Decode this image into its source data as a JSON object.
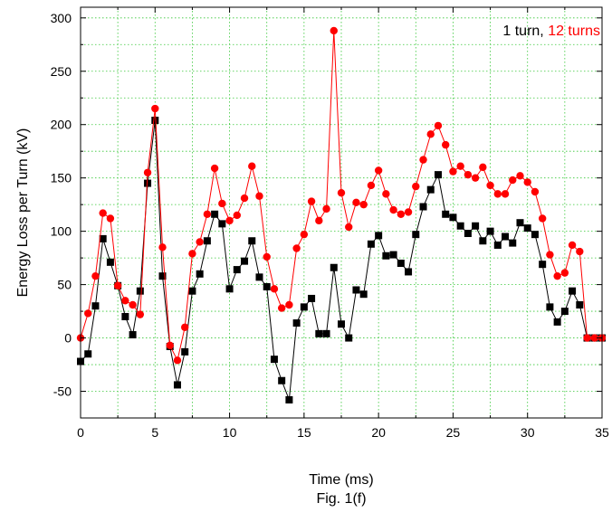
{
  "caption": "Fig. 1(f)",
  "chart_data": {
    "type": "line",
    "title": "",
    "xlabel": "Time (ms)",
    "ylabel": "Energy Loss per Turn (kV)",
    "xlim": [
      0,
      35
    ],
    "ylim": [
      -75,
      310
    ],
    "xticks": [
      0,
      5,
      10,
      15,
      20,
      25,
      30,
      35
    ],
    "yticks": [
      -50,
      0,
      50,
      100,
      150,
      200,
      250,
      300
    ],
    "grid": true,
    "legend": {
      "placement": "top-right",
      "separator": ", ",
      "entries": [
        {
          "label": "1 turn",
          "color": "#000000"
        },
        {
          "label": "12 turns",
          "color": "#ff0000"
        }
      ]
    },
    "series": [
      {
        "name": "1 turn",
        "color": "#000000",
        "marker": "square",
        "points": [
          [
            0.0,
            -22
          ],
          [
            0.5,
            -15
          ],
          [
            1.0,
            30
          ],
          [
            1.5,
            93
          ],
          [
            2.0,
            71
          ],
          [
            2.5,
            49
          ],
          [
            3.0,
            20
          ],
          [
            3.5,
            3
          ],
          [
            4.0,
            44
          ],
          [
            4.5,
            145
          ],
          [
            5.0,
            204
          ],
          [
            5.5,
            58
          ],
          [
            6.0,
            -8
          ],
          [
            6.5,
            -44
          ],
          [
            7.0,
            -13
          ],
          [
            7.5,
            44
          ],
          [
            8.0,
            60
          ],
          [
            8.5,
            91
          ],
          [
            9.0,
            116
          ],
          [
            9.5,
            107
          ],
          [
            10.0,
            46
          ],
          [
            10.5,
            64
          ],
          [
            11.0,
            72
          ],
          [
            11.5,
            91
          ],
          [
            12.0,
            57
          ],
          [
            12.5,
            48
          ],
          [
            13.0,
            -20
          ],
          [
            13.5,
            -40
          ],
          [
            14.0,
            -58
          ],
          [
            14.5,
            14
          ],
          [
            15.0,
            29
          ],
          [
            15.5,
            37
          ],
          [
            16.0,
            4
          ],
          [
            16.5,
            4
          ],
          [
            17.0,
            66
          ],
          [
            17.5,
            13
          ],
          [
            18.0,
            0
          ],
          [
            18.5,
            45
          ],
          [
            19.0,
            41
          ],
          [
            19.5,
            88
          ],
          [
            20.0,
            96
          ],
          [
            20.5,
            77
          ],
          [
            21.0,
            78
          ],
          [
            21.5,
            70
          ],
          [
            22.0,
            62
          ],
          [
            22.5,
            97
          ],
          [
            23.0,
            123
          ],
          [
            23.5,
            139
          ],
          [
            24.0,
            153
          ],
          [
            24.5,
            116
          ],
          [
            25.0,
            113
          ],
          [
            25.5,
            105
          ],
          [
            26.0,
            98
          ],
          [
            26.5,
            105
          ],
          [
            27.0,
            91
          ],
          [
            27.5,
            100
          ],
          [
            28.0,
            87
          ],
          [
            28.5,
            95
          ],
          [
            29.0,
            89
          ],
          [
            29.5,
            108
          ],
          [
            30.0,
            103
          ],
          [
            30.5,
            97
          ],
          [
            31.0,
            69
          ],
          [
            31.5,
            29
          ],
          [
            32.0,
            15
          ],
          [
            32.5,
            25
          ],
          [
            33.0,
            44
          ],
          [
            33.5,
            31
          ],
          [
            34.0,
            0
          ],
          [
            34.5,
            0
          ],
          [
            35.0,
            0
          ]
        ]
      },
      {
        "name": "12 turns",
        "color": "#ff0000",
        "marker": "circle",
        "points": [
          [
            0.0,
            0
          ],
          [
            0.5,
            23
          ],
          [
            1.0,
            58
          ],
          [
            1.5,
            117
          ],
          [
            2.0,
            112
          ],
          [
            2.5,
            49
          ],
          [
            3.0,
            35
          ],
          [
            3.5,
            31
          ],
          [
            4.0,
            22
          ],
          [
            4.5,
            155
          ],
          [
            5.0,
            215
          ],
          [
            5.5,
            85
          ],
          [
            6.0,
            -7
          ],
          [
            6.5,
            -21
          ],
          [
            7.0,
            10
          ],
          [
            7.5,
            79
          ],
          [
            8.0,
            90
          ],
          [
            8.5,
            116
          ],
          [
            9.0,
            159
          ],
          [
            9.5,
            126
          ],
          [
            10.0,
            110
          ],
          [
            10.5,
            115
          ],
          [
            11.0,
            131
          ],
          [
            11.5,
            161
          ],
          [
            12.0,
            133
          ],
          [
            12.5,
            76
          ],
          [
            13.0,
            46
          ],
          [
            13.5,
            28
          ],
          [
            14.0,
            31
          ],
          [
            14.5,
            84
          ],
          [
            15.0,
            97
          ],
          [
            15.5,
            128
          ],
          [
            16.0,
            110
          ],
          [
            16.5,
            121
          ],
          [
            17.0,
            288
          ],
          [
            17.5,
            136
          ],
          [
            18.0,
            104
          ],
          [
            18.5,
            127
          ],
          [
            19.0,
            125
          ],
          [
            19.5,
            143
          ],
          [
            20.0,
            157
          ],
          [
            20.5,
            135
          ],
          [
            21.0,
            120
          ],
          [
            21.5,
            116
          ],
          [
            22.0,
            118
          ],
          [
            22.5,
            142
          ],
          [
            23.0,
            167
          ],
          [
            23.5,
            191
          ],
          [
            24.0,
            199
          ],
          [
            24.5,
            181
          ],
          [
            25.0,
            156
          ],
          [
            25.5,
            161
          ],
          [
            26.0,
            153
          ],
          [
            26.5,
            150
          ],
          [
            27.0,
            160
          ],
          [
            27.5,
            143
          ],
          [
            28.0,
            135
          ],
          [
            28.5,
            135
          ],
          [
            29.0,
            148
          ],
          [
            29.5,
            152
          ],
          [
            30.0,
            146
          ],
          [
            30.5,
            137
          ],
          [
            31.0,
            112
          ],
          [
            31.5,
            78
          ],
          [
            32.0,
            58
          ],
          [
            32.5,
            61
          ],
          [
            33.0,
            87
          ],
          [
            33.5,
            81
          ],
          [
            34.0,
            0
          ],
          [
            34.5,
            0
          ],
          [
            35.0,
            0
          ]
        ]
      }
    ]
  }
}
